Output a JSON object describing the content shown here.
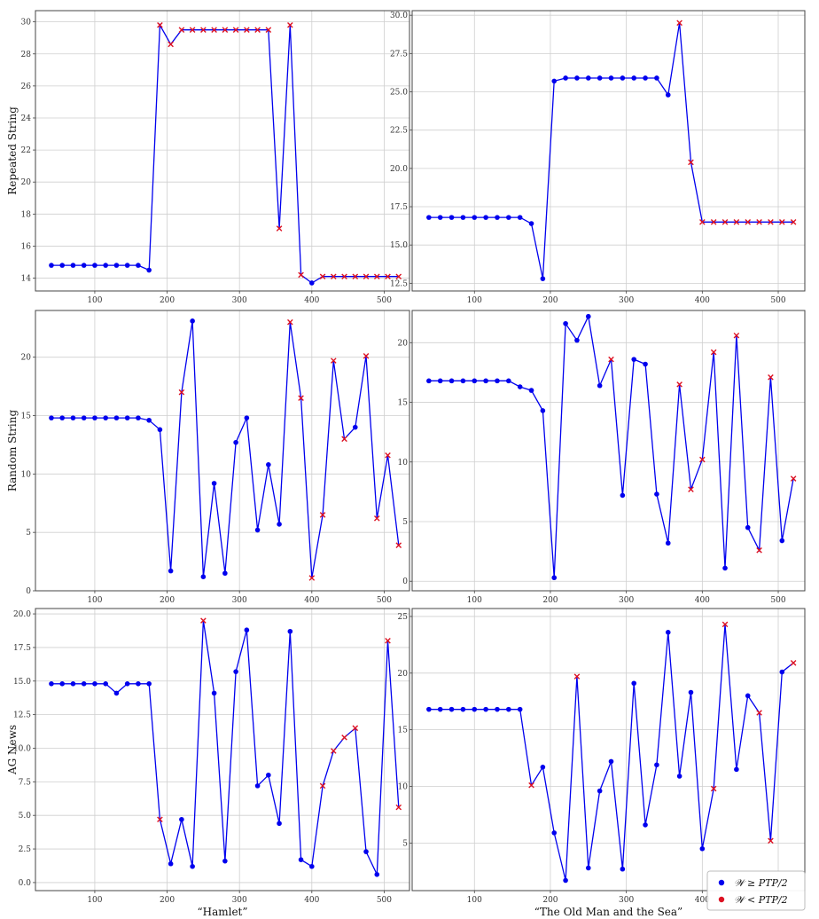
{
  "legend": {
    "items": [
      {
        "label": "𝒲 ≥ PTP/2",
        "marker": "dot",
        "color": "#0000ee"
      },
      {
        "label": "𝒲 < PTP/2",
        "marker": "dot",
        "color": "#dd1122"
      }
    ]
  },
  "colors": {
    "line": "#0000ee",
    "point": "#0000ee",
    "cross": "#dd1122",
    "grid": "#cfcfcf",
    "frame": "#444444"
  },
  "chart_data": [
    {
      "type": "line",
      "row": 0,
      "col": 0,
      "ylabel": "Repeated String",
      "xlabel": "",
      "xlim": [
        18,
        535
      ],
      "ylim": [
        13.2,
        30.7
      ],
      "xticks": [
        100,
        200,
        300,
        400,
        500
      ],
      "yticks": [
        14,
        16,
        18,
        20,
        22,
        24,
        26,
        28,
        30
      ],
      "ytick_labels": [
        "14",
        "16",
        "18",
        "20",
        "22",
        "24",
        "26",
        "28",
        "30"
      ],
      "x": [
        40,
        55,
        70,
        85,
        100,
        115,
        130,
        145,
        160,
        175,
        190,
        205,
        220,
        235,
        250,
        265,
        280,
        295,
        310,
        325,
        340,
        355,
        370,
        385,
        400,
        415,
        430,
        445,
        460,
        475,
        490,
        505,
        520
      ],
      "y": [
        14.8,
        14.8,
        14.8,
        14.8,
        14.8,
        14.8,
        14.8,
        14.8,
        14.8,
        14.5,
        29.8,
        28.6,
        29.5,
        29.5,
        29.5,
        29.5,
        29.5,
        29.5,
        29.5,
        29.5,
        29.5,
        17.1,
        29.8,
        14.2,
        13.7,
        14.1,
        14.1,
        14.1,
        14.1,
        14.1,
        14.1,
        14.1,
        14.1
      ],
      "below": [
        0,
        0,
        0,
        0,
        0,
        0,
        0,
        0,
        0,
        0,
        1,
        1,
        1,
        1,
        1,
        1,
        1,
        1,
        1,
        1,
        1,
        1,
        1,
        1,
        0,
        1,
        1,
        1,
        1,
        1,
        1,
        1,
        1
      ]
    },
    {
      "type": "line",
      "row": 0,
      "col": 1,
      "ylabel": "",
      "xlabel": "",
      "xlim": [
        18,
        535
      ],
      "ylim": [
        12.0,
        30.3
      ],
      "xticks": [
        100,
        200,
        300,
        400,
        500
      ],
      "yticks": [
        12.5,
        15.0,
        17.5,
        20.0,
        22.5,
        25.0,
        27.5,
        30.0
      ],
      "ytick_labels": [
        "12.5",
        "15.0",
        "17.5",
        "20.0",
        "22.5",
        "25.0",
        "27.5",
        "30.0"
      ],
      "x": [
        40,
        55,
        70,
        85,
        100,
        115,
        130,
        145,
        160,
        175,
        190,
        205,
        220,
        235,
        250,
        265,
        280,
        295,
        310,
        325,
        340,
        355,
        370,
        385,
        400,
        415,
        430,
        445,
        460,
        475,
        490,
        505,
        520
      ],
      "y": [
        16.8,
        16.8,
        16.8,
        16.8,
        16.8,
        16.8,
        16.8,
        16.8,
        16.8,
        16.4,
        12.8,
        25.7,
        25.9,
        25.9,
        25.9,
        25.9,
        25.9,
        25.9,
        25.9,
        25.9,
        25.9,
        24.8,
        29.5,
        20.4,
        16.5,
        16.5,
        16.5,
        16.5,
        16.5,
        16.5,
        16.5,
        16.5,
        16.5
      ],
      "below": [
        0,
        0,
        0,
        0,
        0,
        0,
        0,
        0,
        0,
        0,
        0,
        0,
        0,
        0,
        0,
        0,
        0,
        0,
        0,
        0,
        0,
        0,
        1,
        1,
        1,
        1,
        1,
        1,
        1,
        1,
        1,
        1,
        1
      ]
    },
    {
      "type": "line",
      "row": 1,
      "col": 0,
      "ylabel": "Random String",
      "xlabel": "",
      "xlim": [
        18,
        535
      ],
      "ylim": [
        0,
        24.0
      ],
      "xticks": [
        100,
        200,
        300,
        400,
        500
      ],
      "yticks": [
        0,
        5,
        10,
        15,
        20
      ],
      "ytick_labels": [
        "0",
        "5",
        "10",
        "15",
        "20"
      ],
      "x": [
        40,
        55,
        70,
        85,
        100,
        115,
        130,
        145,
        160,
        175,
        190,
        205,
        220,
        235,
        250,
        265,
        280,
        295,
        310,
        325,
        340,
        355,
        370,
        385,
        400,
        415,
        430,
        445,
        460,
        475,
        490,
        505,
        520
      ],
      "y": [
        14.8,
        14.8,
        14.8,
        14.8,
        14.8,
        14.8,
        14.8,
        14.8,
        14.8,
        14.6,
        13.8,
        1.7,
        17.0,
        23.1,
        1.2,
        9.2,
        1.5,
        12.7,
        14.8,
        5.2,
        10.8,
        5.7,
        23.0,
        16.5,
        1.1,
        6.5,
        19.7,
        13.0,
        14.0,
        20.1,
        6.2,
        11.6,
        3.9
      ],
      "below": [
        0,
        0,
        0,
        0,
        0,
        0,
        0,
        0,
        0,
        0,
        0,
        0,
        1,
        0,
        0,
        0,
        0,
        0,
        0,
        0,
        0,
        0,
        1,
        1,
        1,
        1,
        1,
        1,
        0,
        1,
        1,
        1,
        1
      ]
    },
    {
      "type": "line",
      "row": 1,
      "col": 1,
      "ylabel": "",
      "xlabel": "",
      "xlim": [
        18,
        535
      ],
      "ylim": [
        -0.8,
        22.7
      ],
      "xticks": [
        100,
        200,
        300,
        400,
        500
      ],
      "yticks": [
        0,
        5,
        10,
        15,
        20
      ],
      "ytick_labels": [
        "0",
        "5",
        "10",
        "15",
        "20"
      ],
      "x": [
        40,
        55,
        70,
        85,
        100,
        115,
        130,
        145,
        160,
        175,
        190,
        205,
        220,
        235,
        250,
        265,
        280,
        295,
        310,
        325,
        340,
        355,
        370,
        385,
        400,
        415,
        430,
        445,
        460,
        475,
        490,
        505,
        520
      ],
      "y": [
        16.8,
        16.8,
        16.8,
        16.8,
        16.8,
        16.8,
        16.8,
        16.8,
        16.3,
        16.0,
        14.3,
        0.3,
        21.6,
        20.2,
        22.2,
        16.4,
        18.6,
        7.2,
        18.6,
        18.2,
        7.3,
        3.2,
        16.5,
        7.7,
        10.2,
        19.2,
        1.1,
        20.6,
        4.5,
        2.6,
        17.1,
        3.4,
        8.6
      ],
      "below": [
        0,
        0,
        0,
        0,
        0,
        0,
        0,
        0,
        0,
        0,
        0,
        0,
        0,
        0,
        0,
        0,
        1,
        0,
        0,
        0,
        0,
        0,
        1,
        1,
        1,
        1,
        0,
        1,
        0,
        1,
        1,
        0,
        1
      ]
    },
    {
      "type": "line",
      "row": 2,
      "col": 0,
      "ylabel": "AG News",
      "xlabel": "“Hamlet”",
      "xlim": [
        18,
        535
      ],
      "ylim": [
        -0.6,
        20.4
      ],
      "xticks": [
        100,
        200,
        300,
        400,
        500
      ],
      "yticks": [
        0.0,
        2.5,
        5.0,
        7.5,
        10.0,
        12.5,
        15.0,
        17.5,
        20.0
      ],
      "ytick_labels": [
        "0.0",
        "2.5",
        "5.0",
        "7.5",
        "10.0",
        "12.5",
        "15.0",
        "17.5",
        "20.0"
      ],
      "x": [
        40,
        55,
        70,
        85,
        100,
        115,
        130,
        145,
        160,
        175,
        190,
        205,
        220,
        235,
        250,
        265,
        280,
        295,
        310,
        325,
        340,
        355,
        370,
        385,
        400,
        415,
        430,
        445,
        460,
        475,
        490,
        505,
        520
      ],
      "y": [
        14.8,
        14.8,
        14.8,
        14.8,
        14.8,
        14.8,
        14.1,
        14.8,
        14.8,
        14.8,
        4.7,
        1.4,
        4.7,
        1.2,
        19.5,
        14.1,
        1.6,
        15.7,
        18.8,
        7.2,
        8.0,
        4.4,
        18.7,
        1.7,
        1.2,
        7.2,
        9.8,
        10.8,
        11.5,
        2.3,
        0.6,
        18.0,
        5.6
      ],
      "below": [
        0,
        0,
        0,
        0,
        0,
        0,
        0,
        0,
        0,
        0,
        1,
        0,
        0,
        0,
        1,
        0,
        0,
        0,
        0,
        0,
        0,
        0,
        0,
        0,
        0,
        1,
        1,
        1,
        1,
        0,
        0,
        1,
        1
      ]
    },
    {
      "type": "line",
      "row": 2,
      "col": 1,
      "ylabel": "",
      "xlabel": "“The Old Man and the Sea”",
      "xlim": [
        18,
        535
      ],
      "ylim": [
        0.8,
        25.7
      ],
      "xticks": [
        100,
        200,
        300,
        400,
        500
      ],
      "yticks": [
        5,
        10,
        15,
        20,
        25
      ],
      "ytick_labels": [
        "5",
        "10",
        "15",
        "20",
        "25"
      ],
      "x": [
        40,
        55,
        70,
        85,
        100,
        115,
        130,
        145,
        160,
        175,
        190,
        205,
        220,
        235,
        250,
        265,
        280,
        295,
        310,
        325,
        340,
        355,
        370,
        385,
        400,
        415,
        430,
        445,
        460,
        475,
        490,
        505,
        520
      ],
      "y": [
        16.8,
        16.8,
        16.8,
        16.8,
        16.8,
        16.8,
        16.8,
        16.8,
        16.8,
        10.1,
        11.7,
        5.9,
        1.7,
        19.7,
        2.8,
        9.6,
        12.2,
        2.7,
        19.1,
        6.6,
        11.9,
        23.6,
        10.9,
        18.3,
        4.5,
        9.8,
        24.3,
        11.5,
        18.0,
        16.5,
        5.2,
        20.1,
        20.9
      ],
      "below": [
        0,
        0,
        0,
        0,
        0,
        0,
        0,
        0,
        0,
        1,
        0,
        0,
        0,
        1,
        0,
        0,
        0,
        0,
        0,
        0,
        0,
        0,
        0,
        0,
        0,
        1,
        1,
        0,
        0,
        1,
        1,
        0,
        1
      ]
    }
  ]
}
